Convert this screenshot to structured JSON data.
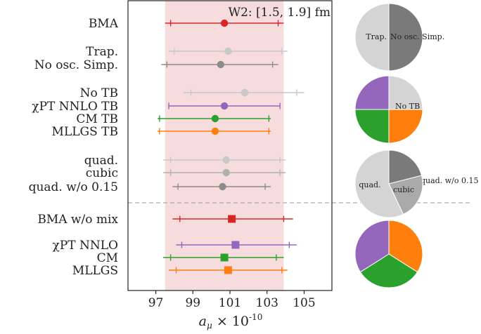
{
  "chart_data": {
    "type": "errorbar",
    "title": "W2: [1.5, 1.9] fm",
    "xlabel": "a_μ × 10^{-10}",
    "xlim": [
      95.5,
      106.5
    ],
    "xticks": [
      97,
      99,
      101,
      103,
      105
    ],
    "band": {
      "low": 97.5,
      "high": 103.9,
      "color": "#f6dcdc"
    },
    "rows": [
      {
        "label": "BMA",
        "center": 100.7,
        "stat_low": 97.8,
        "stat_high": 103.6,
        "err_low": 97.5,
        "err_high": 103.9,
        "color": "#d62728",
        "marker": "circle"
      },
      {
        "label": "Trap.",
        "center": 100.9,
        "stat_low": 98.0,
        "stat_high": 103.8,
        "err_low": 97.7,
        "err_high": 104.1,
        "color": "#c8c8c8",
        "marker": "circle"
      },
      {
        "label": "No osc. Simp.",
        "center": 100.5,
        "stat_low": 97.6,
        "stat_high": 103.3,
        "err_low": 97.3,
        "err_high": 103.6,
        "color": "#8c8c8c",
        "marker": "circle"
      },
      {
        "label": "No TB",
        "center": 101.8,
        "stat_low": 98.9,
        "stat_high": 104.6,
        "err_low": 98.5,
        "err_high": 105.0,
        "color": "#c8c8c8",
        "marker": "circle"
      },
      {
        "label": "χPT NNLO TB",
        "center": 100.7,
        "stat_low": 97.7,
        "stat_high": 103.7,
        "err_low": 97.7,
        "err_high": 103.7,
        "color": "#9467bd",
        "marker": "circle"
      },
      {
        "label": "CM TB",
        "center": 100.2,
        "stat_low": 97.2,
        "stat_high": 103.1,
        "err_low": 97.1,
        "err_high": 103.2,
        "color": "#2ca02c",
        "marker": "circle"
      },
      {
        "label": "MLLGS TB",
        "center": 100.2,
        "stat_low": 97.2,
        "stat_high": 103.1,
        "err_low": 97.1,
        "err_high": 103.2,
        "color": "#ff7f0e",
        "marker": "circle"
      },
      {
        "label": "quad.",
        "center": 100.8,
        "stat_low": 97.8,
        "stat_high": 103.7,
        "err_low": 97.4,
        "err_high": 104.0,
        "color": "#c8c8c8",
        "marker": "circle"
      },
      {
        "label": "cubic",
        "center": 100.8,
        "stat_low": 97.8,
        "stat_high": 103.7,
        "err_low": 97.4,
        "err_high": 104.0,
        "color": "#b0b0b0",
        "marker": "circle"
      },
      {
        "label": "quad. w/o 0.15",
        "center": 100.6,
        "stat_low": 98.2,
        "stat_high": 102.9,
        "err_low": 97.9,
        "err_high": 103.2,
        "color": "#8c8c8c",
        "marker": "circle"
      },
      {
        "label": "BMA w/o mix",
        "center": 101.1,
        "stat_low": 98.3,
        "stat_high": 103.9,
        "err_low": 97.9,
        "err_high": 104.4,
        "color": "#d62728",
        "marker": "square"
      },
      {
        "label": "χPT NNLO",
        "center": 101.3,
        "stat_low": 98.4,
        "stat_high": 104.2,
        "err_low": 98.1,
        "err_high": 104.6,
        "color": "#9467bd",
        "marker": "square"
      },
      {
        "label": "CM",
        "center": 100.7,
        "stat_low": 97.8,
        "stat_high": 103.5,
        "err_low": 97.4,
        "err_high": 103.9,
        "color": "#2ca02c",
        "marker": "square"
      },
      {
        "label": "MLLGS",
        "center": 100.9,
        "stat_low": 98.1,
        "stat_high": 103.8,
        "err_low": 97.7,
        "err_high": 104.1,
        "color": "#ff7f0e",
        "marker": "square"
      }
    ],
    "pies": [
      {
        "slices": [
          {
            "label": "No osc. Simp.",
            "value": 50,
            "color": "#7a7a7a"
          },
          {
            "label": "Trap.",
            "value": 50,
            "color": "#d4d4d4"
          }
        ]
      },
      {
        "slices": [
          {
            "label": "No TB",
            "value": 25,
            "color": "#d4d4d4"
          },
          {
            "label": "",
            "value": 25,
            "color": "#ff7f0e"
          },
          {
            "label": "",
            "value": 25,
            "color": "#2ca02c"
          },
          {
            "label": "",
            "value": 25,
            "color": "#9467bd"
          }
        ]
      },
      {
        "slices": [
          {
            "label": "quad. w/o 0.15",
            "value": 21,
            "color": "#7a7a7a"
          },
          {
            "label": "cubic",
            "value": 22,
            "color": "#aaaaaa"
          },
          {
            "label": "quad.",
            "value": 57,
            "color": "#d4d4d4"
          }
        ]
      },
      {
        "slices": [
          {
            "label": "",
            "value": 34,
            "color": "#ff7f0e"
          },
          {
            "label": "",
            "value": 32,
            "color": "#2ca02c"
          },
          {
            "label": "",
            "value": 34,
            "color": "#9467bd"
          }
        ]
      }
    ]
  }
}
